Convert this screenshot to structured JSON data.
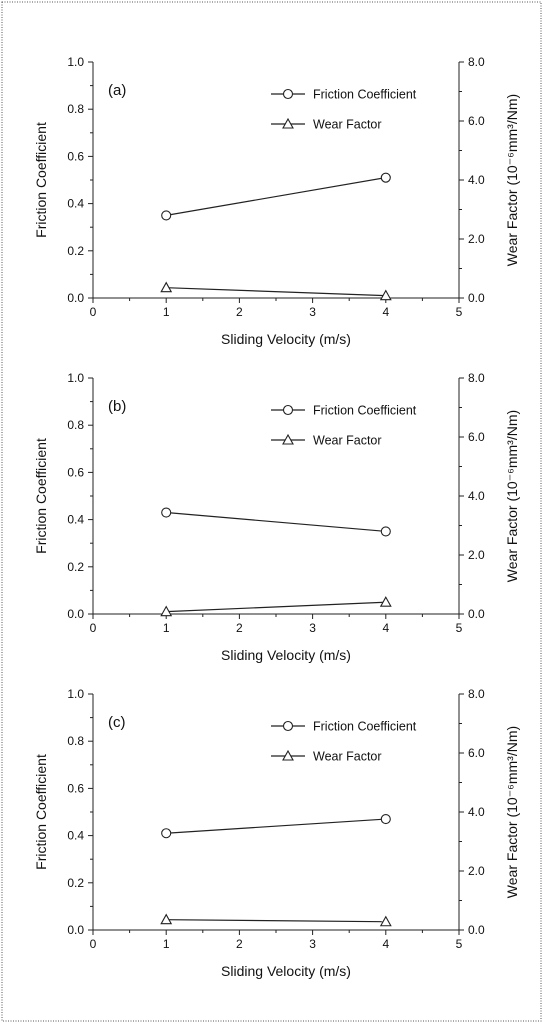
{
  "chart_data": [
    {
      "type": "line",
      "panel_label": "(a)",
      "xlabel": "Sliding Velocity (m/s)",
      "ylabel_left": "Friction Coefficient",
      "ylabel_right": "Wear Factor (10⁻⁶mm³/Nm)",
      "xlim": [
        0,
        5
      ],
      "ylim_left": [
        0,
        1.0
      ],
      "ylim_right": [
        0,
        8.0
      ],
      "x_ticks": [
        "0",
        "1",
        "2",
        "3",
        "4",
        "5"
      ],
      "y_left_ticks": [
        "0.0",
        "0.2",
        "0.4",
        "0.6",
        "0.8",
        "1.0"
      ],
      "y_right_ticks": [
        "0.0",
        "2.0",
        "4.0",
        "6.0",
        "8.0"
      ],
      "series": [
        {
          "name": "Friction Coefficient",
          "axis": "left",
          "marker": "circle",
          "x": [
            1,
            4
          ],
          "y": [
            0.35,
            0.51
          ]
        },
        {
          "name": "Wear Factor",
          "axis": "right",
          "marker": "triangle",
          "x": [
            1,
            4
          ],
          "y": [
            0.35,
            0.08
          ]
        }
      ]
    },
    {
      "type": "line",
      "panel_label": "(b)",
      "xlabel": "Sliding Velocity (m/s)",
      "ylabel_left": "Friction Coefficient",
      "ylabel_right": "Wear Factor (10⁻⁶mm³/Nm)",
      "xlim": [
        0,
        5
      ],
      "ylim_left": [
        0,
        1.0
      ],
      "ylim_right": [
        0,
        8.0
      ],
      "x_ticks": [
        "0",
        "1",
        "2",
        "3",
        "4",
        "5"
      ],
      "y_left_ticks": [
        "0.0",
        "0.2",
        "0.4",
        "0.6",
        "0.8",
        "1.0"
      ],
      "y_right_ticks": [
        "0.0",
        "2.0",
        "4.0",
        "6.0",
        "8.0"
      ],
      "series": [
        {
          "name": "Friction Coefficient",
          "axis": "left",
          "marker": "circle",
          "x": [
            1,
            4
          ],
          "y": [
            0.43,
            0.35
          ]
        },
        {
          "name": "Wear Factor",
          "axis": "right",
          "marker": "triangle",
          "x": [
            1,
            4
          ],
          "y": [
            0.08,
            0.4
          ]
        }
      ]
    },
    {
      "type": "line",
      "panel_label": "(c)",
      "xlabel": "Sliding Velocity (m/s)",
      "ylabel_left": "Friction Coefficient",
      "ylabel_right": "Wear Factor (10⁻⁶mm³/Nm)",
      "xlim": [
        0,
        5
      ],
      "ylim_left": [
        0,
        1.0
      ],
      "ylim_right": [
        0,
        8.0
      ],
      "x_ticks": [
        "0",
        "1",
        "2",
        "3",
        "4",
        "5"
      ],
      "y_left_ticks": [
        "0.0",
        "0.2",
        "0.4",
        "0.6",
        "0.8",
        "1.0"
      ],
      "y_right_ticks": [
        "0.0",
        "2.0",
        "4.0",
        "6.0",
        "8.0"
      ],
      "series": [
        {
          "name": "Friction Coefficient",
          "axis": "left",
          "marker": "circle",
          "x": [
            1,
            4
          ],
          "y": [
            0.41,
            0.47
          ]
        },
        {
          "name": "Wear Factor",
          "axis": "right",
          "marker": "triangle",
          "x": [
            1,
            4
          ],
          "y": [
            0.35,
            0.28
          ]
        }
      ]
    }
  ]
}
